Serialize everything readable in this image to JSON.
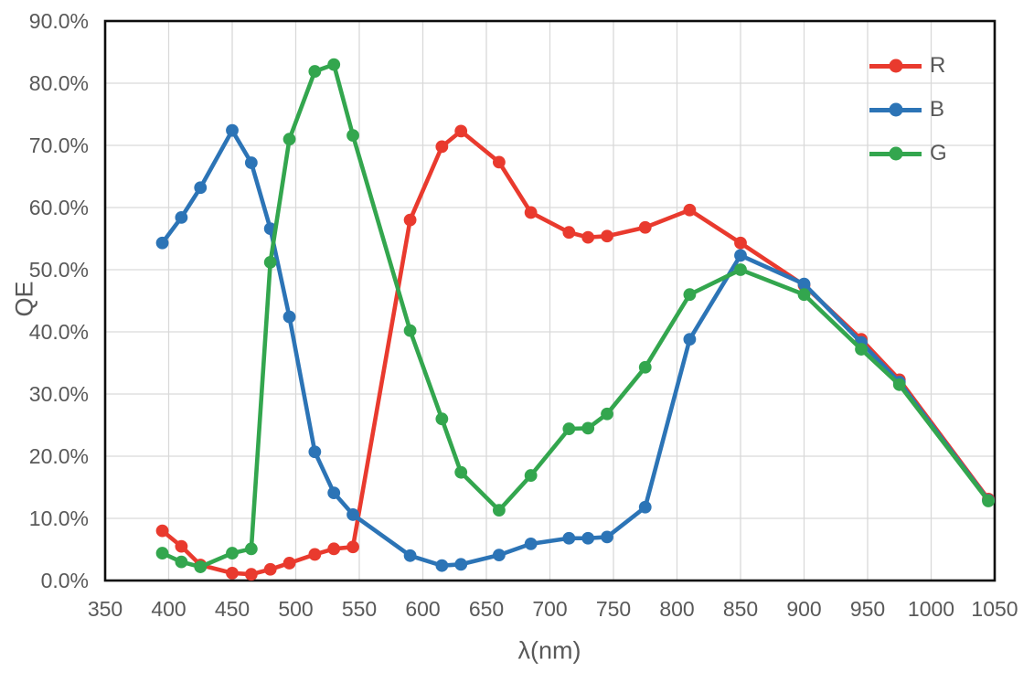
{
  "chart_data": {
    "type": "line",
    "title": "",
    "xlabel": "λ(nm)",
    "ylabel": "QE",
    "xlim": [
      350,
      1050
    ],
    "ylim": [
      0,
      90
    ],
    "grid": true,
    "legend_position": "top-right-inside",
    "x_ticks": [
      "350",
      "400",
      "450",
      "500",
      "550",
      "600",
      "650",
      "700",
      "750",
      "800",
      "850",
      "900",
      "950",
      "1000",
      "1050"
    ],
    "x_tick_values": [
      350,
      400,
      450,
      500,
      550,
      600,
      650,
      700,
      750,
      800,
      850,
      900,
      950,
      1000,
      1050
    ],
    "y_ticks": [
      "0.0%",
      "10.0%",
      "20.0%",
      "30.0%",
      "40.0%",
      "50.0%",
      "60.0%",
      "70.0%",
      "80.0%",
      "90.0%"
    ],
    "y_tick_values": [
      0,
      10,
      20,
      30,
      40,
      50,
      60,
      70,
      80,
      90
    ],
    "x": [
      395,
      410,
      425,
      450,
      465,
      480,
      495,
      515,
      530,
      545,
      590,
      615,
      630,
      660,
      685,
      715,
      730,
      745,
      775,
      810,
      850,
      900,
      945,
      975,
      1045
    ],
    "series": [
      {
        "name": "R",
        "color": "#E93A2E",
        "values": [
          8.0,
          5.5,
          2.5,
          1.2,
          1.0,
          1.8,
          2.8,
          4.2,
          5.1,
          5.4,
          58.0,
          69.8,
          72.3,
          67.3,
          59.2,
          56.0,
          55.2,
          55.4,
          56.8,
          59.6,
          54.3,
          47.5,
          38.8,
          32.3,
          13.1
        ]
      },
      {
        "name": "B",
        "color": "#2C74B6",
        "values": [
          54.3,
          58.4,
          63.2,
          72.4,
          67.2,
          56.6,
          42.4,
          20.7,
          14.1,
          10.6,
          4.0,
          2.4,
          2.6,
          4.1,
          5.9,
          6.8,
          6.8,
          7.0,
          11.8,
          38.8,
          52.3,
          47.7,
          38.3,
          31.9,
          12.9
        ]
      },
      {
        "name": "G",
        "color": "#33A64E",
        "values": [
          4.4,
          3.0,
          2.2,
          4.4,
          5.1,
          51.2,
          71.0,
          81.9,
          83.0,
          71.6,
          40.2,
          26.0,
          17.4,
          11.3,
          16.9,
          24.4,
          24.5,
          26.8,
          34.3,
          46.0,
          50.0,
          46.0,
          37.2,
          31.5,
          12.8
        ]
      }
    ],
    "style_colors": {
      "grid": "#D9D9D9",
      "axis_border": "#0D0D0D",
      "tick_text": "#595959"
    }
  }
}
